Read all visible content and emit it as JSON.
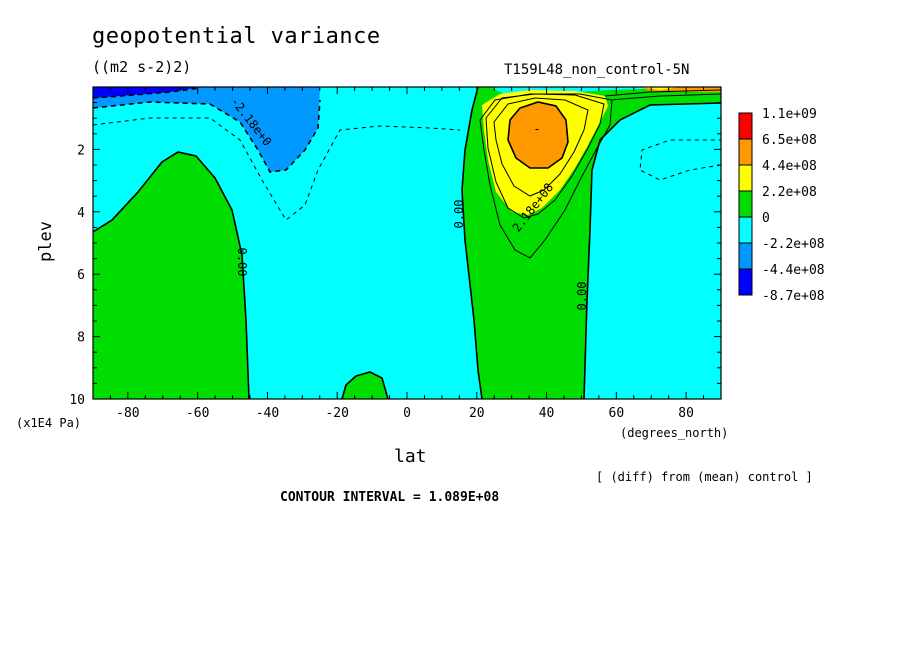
{
  "header": {
    "title": "geopotential variance",
    "units": "((m2 s-2)2)",
    "run": "T159L48_non_control-5N"
  },
  "footer": {
    "xunits": "(degrees_north)",
    "yunits": "(x1E4 Pa)",
    "note": "[ (diff) from (mean) control ]",
    "contour_interval": "CONTOUR INTERVAL = 1.089E+08"
  },
  "chart_data": {
    "type": "heatmap",
    "title": "geopotential variance",
    "xlabel": "lat",
    "ylabel": "plev",
    "xlim": [
      -90,
      90
    ],
    "ylim": [
      10,
      0
    ],
    "xticks": [
      -80,
      -60,
      -40,
      -20,
      0,
      20,
      40,
      60,
      80
    ],
    "yticks": [
      2,
      4,
      6,
      8,
      10
    ],
    "contour_labels": [
      "0.00",
      "0.00",
      "0.00",
      "-2.18e+0",
      "2.18e+08",
      "-"
    ],
    "legend": {
      "position": "right",
      "colors": [
        "#ff0000",
        "#ff9900",
        "#ffff00",
        "#00dd00",
        "#00ffff",
        "#0099ff",
        "#0000ff"
      ],
      "labels": [
        "1.1e+09",
        "6.5e+08",
        "4.4e+08",
        "2.2e+08",
        "0",
        "-2.2e+08",
        "-4.4e+08",
        "-8.7e+08"
      ]
    }
  }
}
